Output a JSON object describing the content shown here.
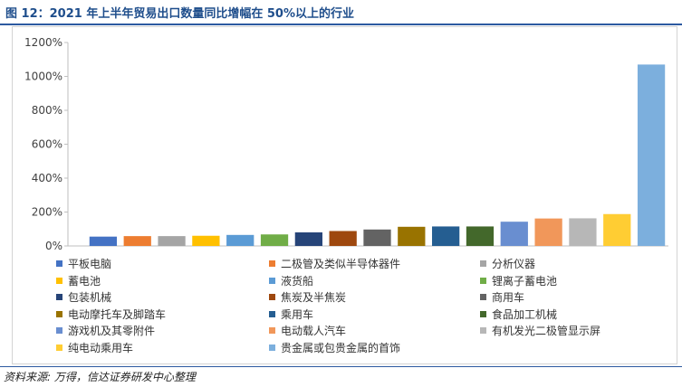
{
  "page": {
    "title": "图 12：2021 年上半年贸易出口数量同比增幅在 50%以上的行业",
    "source": "资料来源: 万得，信达证券研发中心整理"
  },
  "chart_data": {
    "type": "bar",
    "title": "",
    "xlabel": "",
    "ylabel": "",
    "ylim": [
      0,
      1200
    ],
    "y_ticks": [
      0,
      200,
      400,
      600,
      800,
      1000,
      1200
    ],
    "y_tick_labels": [
      "0%",
      "200%",
      "400%",
      "600%",
      "800%",
      "1000%",
      "1200%"
    ],
    "grid": false,
    "legend_position": "bottom",
    "series": [
      {
        "name": "平板电脑",
        "value": 55,
        "color": "#4472c4"
      },
      {
        "name": "二极管及类似半导体器件",
        "value": 58,
        "color": "#ed7d31"
      },
      {
        "name": "分析仪器",
        "value": 58,
        "color": "#a5a5a5"
      },
      {
        "name": "蓄电池",
        "value": 60,
        "color": "#ffc000"
      },
      {
        "name": "液货船",
        "value": 65,
        "color": "#5b9bd5"
      },
      {
        "name": "锂离子蓄电池",
        "value": 68,
        "color": "#70ad47"
      },
      {
        "name": "包装机械",
        "value": 80,
        "color": "#264478"
      },
      {
        "name": "焦炭及半焦炭",
        "value": 88,
        "color": "#9e480e"
      },
      {
        "name": "商用车",
        "value": 97,
        "color": "#636363"
      },
      {
        "name": "电动摩托车及脚踏车",
        "value": 113,
        "color": "#997300"
      },
      {
        "name": "乘用车",
        "value": 115,
        "color": "#255e91"
      },
      {
        "name": "食品加工机械",
        "value": 115,
        "color": "#43682b"
      },
      {
        "name": "游戏机及其零附件",
        "value": 143,
        "color": "#698ed0"
      },
      {
        "name": "电动载人汽车",
        "value": 162,
        "color": "#f1975a"
      },
      {
        "name": "有机发光二极管显示屏",
        "value": 163,
        "color": "#b7b7b7"
      },
      {
        "name": "纯电动乘用车",
        "value": 188,
        "color": "#ffcd33"
      },
      {
        "name": "贵金属或包贵金属的首饰",
        "value": 1070,
        "color": "#7cafdd"
      }
    ]
  }
}
